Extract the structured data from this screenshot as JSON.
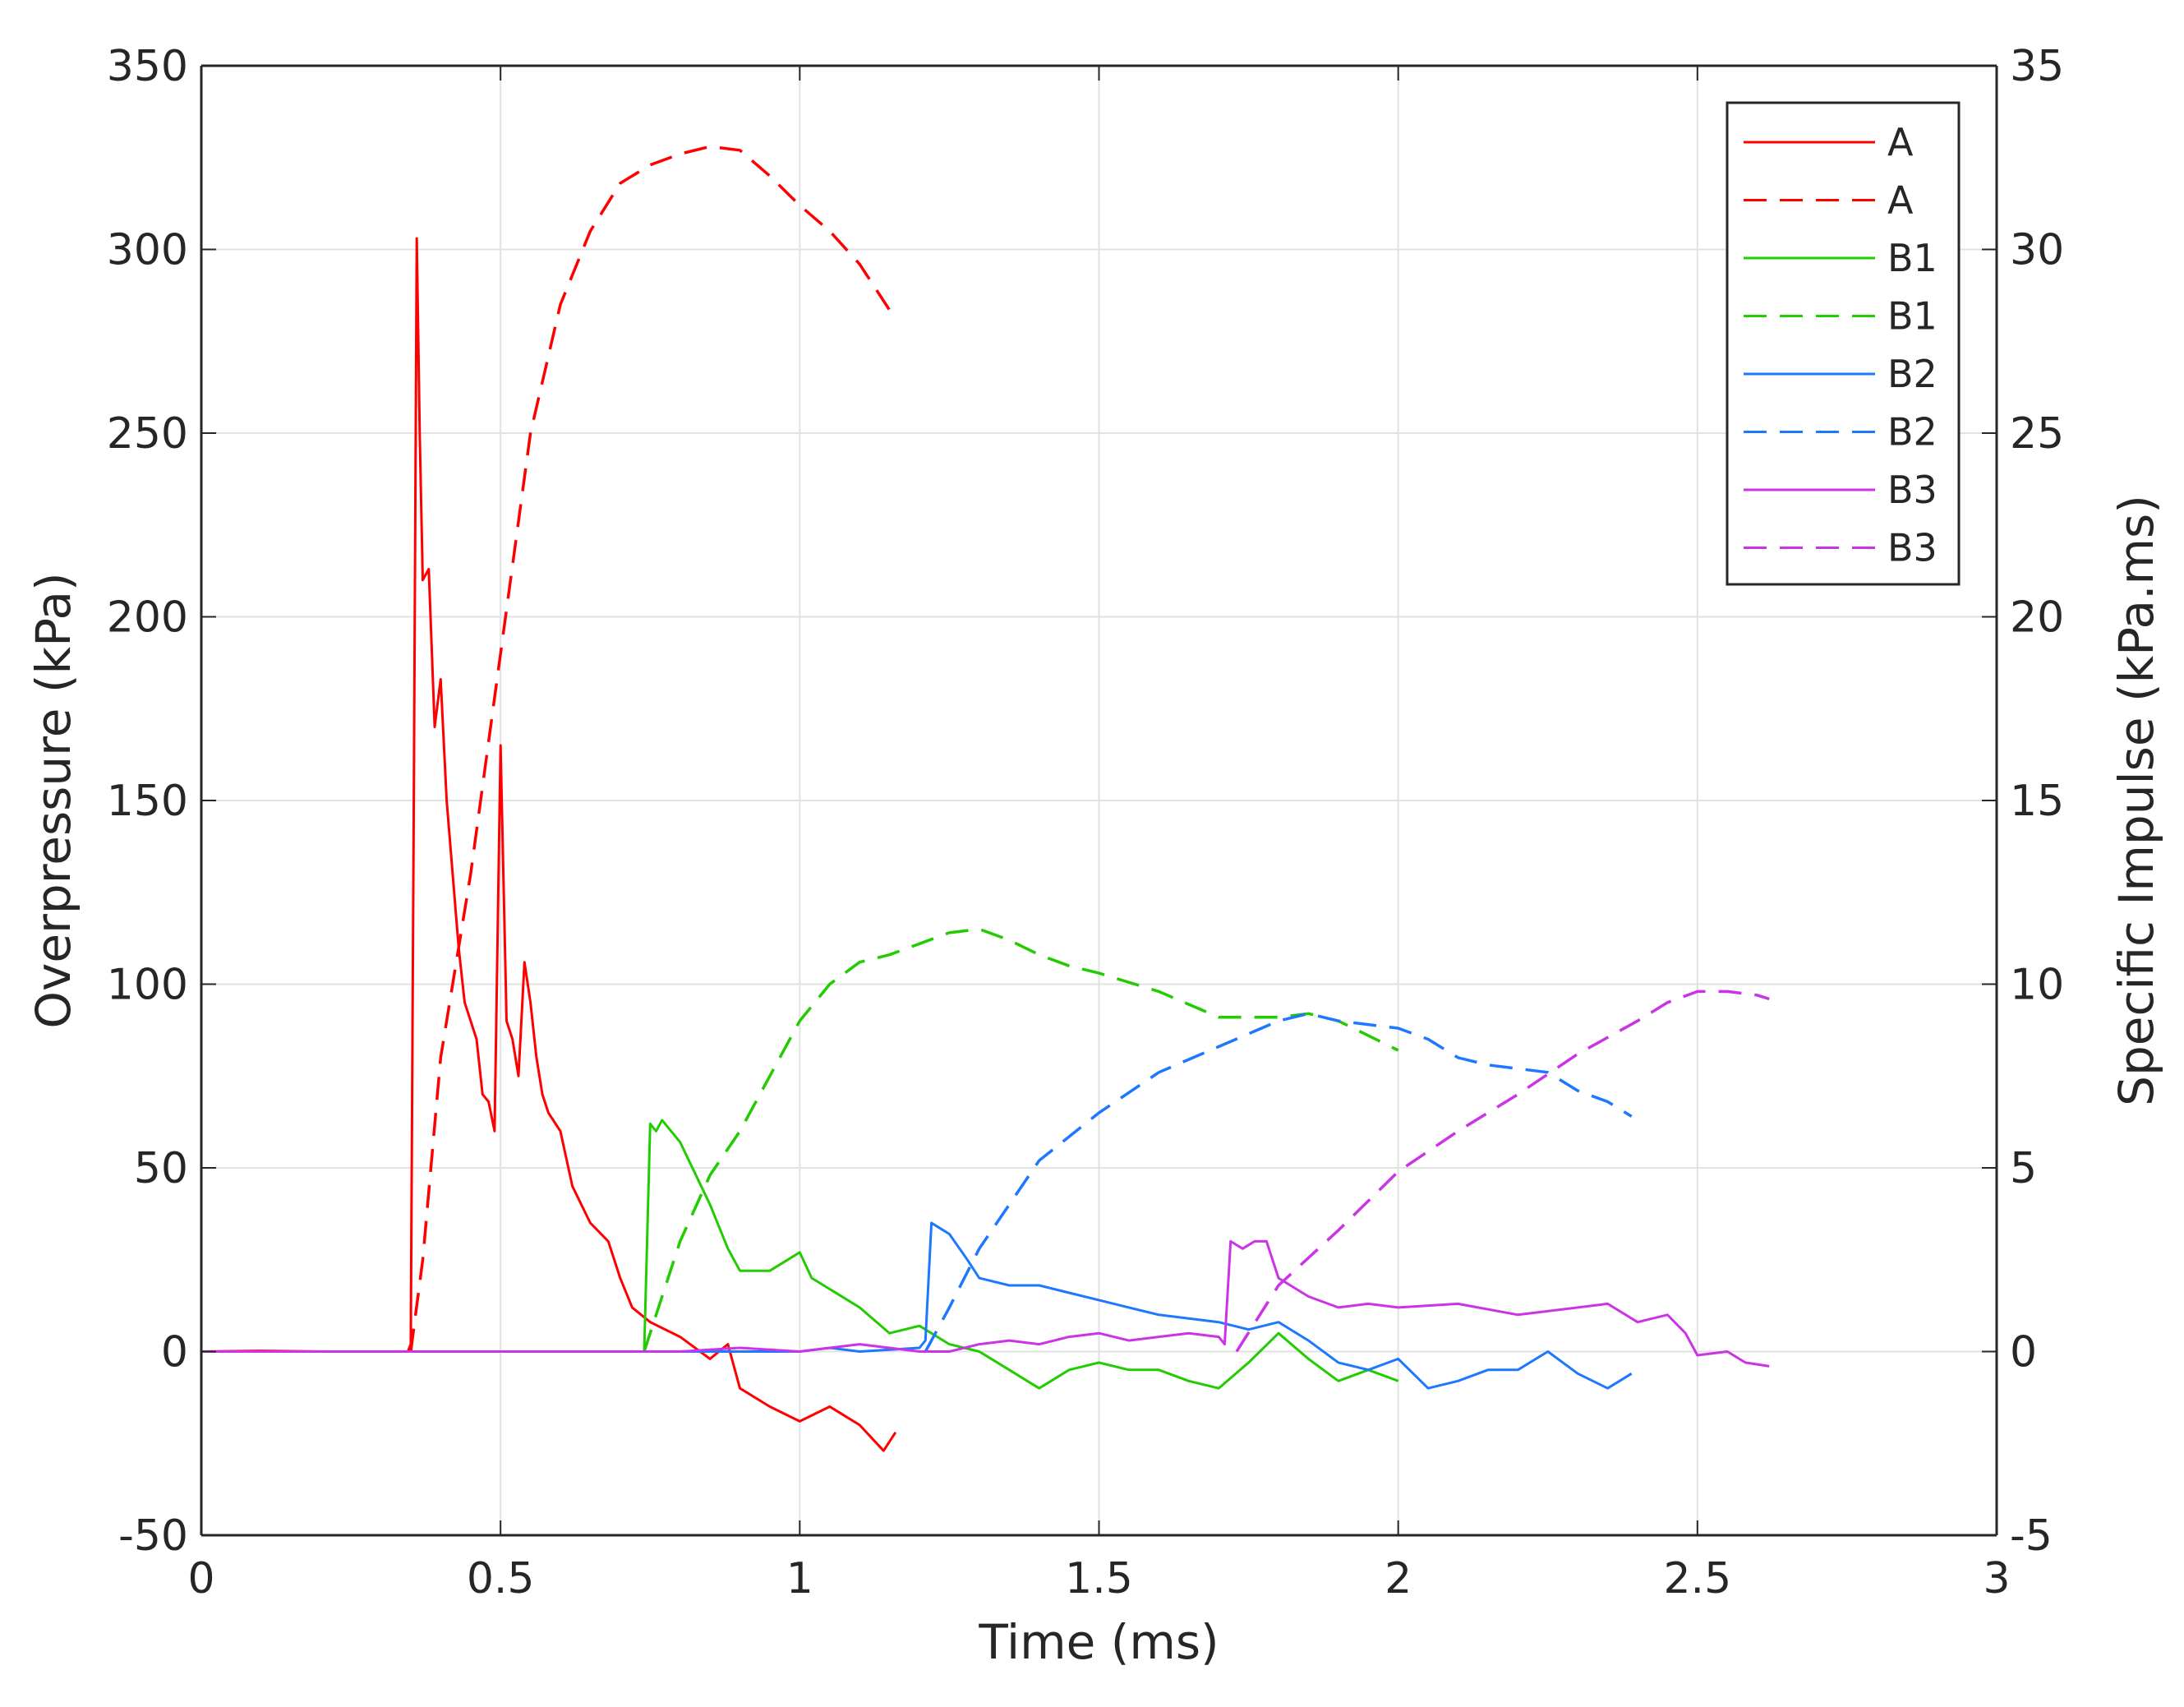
{
  "chart_data": {
    "type": "line",
    "title": "",
    "xlabel": "Time (ms)",
    "ylabel_left": "Overpressure (kPa)",
    "ylabel_right": "Specific Impulse (kPa.ms)",
    "xlim": [
      0,
      3
    ],
    "ylim_left": [
      -50,
      350
    ],
    "ylim_right": [
      -5,
      35
    ],
    "x_ticks": [
      "0",
      "0.5",
      "1",
      "1.5",
      "2",
      "2.5",
      "3"
    ],
    "y_ticks_left": [
      "-50",
      "0",
      "50",
      "100",
      "150",
      "200",
      "250",
      "300",
      "350"
    ],
    "y_ticks_right": [
      "-5",
      "0",
      "5",
      "10",
      "15",
      "20",
      "25",
      "30",
      "35"
    ],
    "grid": true,
    "legend_position": "top-right",
    "series": [
      {
        "name": "A",
        "axis": "left",
        "style": "solid",
        "color": "#ff0000",
        "points": [
          [
            0,
            0
          ],
          [
            0.1,
            0.2
          ],
          [
            0.2,
            0
          ],
          [
            0.3,
            0
          ],
          [
            0.345,
            0
          ],
          [
            0.35,
            2
          ],
          [
            0.355,
            150
          ],
          [
            0.36,
            303
          ],
          [
            0.365,
            250
          ],
          [
            0.37,
            210
          ],
          [
            0.38,
            213
          ],
          [
            0.39,
            170
          ],
          [
            0.4,
            183
          ],
          [
            0.41,
            150
          ],
          [
            0.42,
            130
          ],
          [
            0.43,
            110
          ],
          [
            0.44,
            95
          ],
          [
            0.45,
            90
          ],
          [
            0.46,
            85
          ],
          [
            0.47,
            70
          ],
          [
            0.48,
            68
          ],
          [
            0.49,
            60
          ],
          [
            0.5,
            165
          ],
          [
            0.51,
            90
          ],
          [
            0.52,
            85
          ],
          [
            0.53,
            75
          ],
          [
            0.54,
            106
          ],
          [
            0.55,
            95
          ],
          [
            0.56,
            80
          ],
          [
            0.57,
            70
          ],
          [
            0.58,
            65
          ],
          [
            0.6,
            60
          ],
          [
            0.62,
            45
          ],
          [
            0.65,
            35
          ],
          [
            0.68,
            30
          ],
          [
            0.7,
            20
          ],
          [
            0.72,
            12
          ],
          [
            0.75,
            8
          ],
          [
            0.8,
            4
          ],
          [
            0.85,
            -2
          ],
          [
            0.88,
            2
          ],
          [
            0.9,
            -10
          ],
          [
            0.95,
            -15
          ],
          [
            1.0,
            -19
          ],
          [
            1.05,
            -15
          ],
          [
            1.1,
            -20
          ],
          [
            1.14,
            -27
          ],
          [
            1.16,
            -22
          ]
        ]
      },
      {
        "name": "A",
        "axis": "right",
        "style": "dashed",
        "color": "#ff0000",
        "points": [
          [
            0.35,
            0
          ],
          [
            0.37,
            2.5
          ],
          [
            0.4,
            8
          ],
          [
            0.45,
            13
          ],
          [
            0.5,
            19
          ],
          [
            0.55,
            25
          ],
          [
            0.6,
            28.5
          ],
          [
            0.65,
            30.5
          ],
          [
            0.7,
            31.8
          ],
          [
            0.75,
            32.3
          ],
          [
            0.8,
            32.6
          ],
          [
            0.85,
            32.8
          ],
          [
            0.9,
            32.7
          ],
          [
            0.95,
            32
          ],
          [
            1.0,
            31.2
          ],
          [
            1.05,
            30.5
          ],
          [
            1.1,
            29.6
          ],
          [
            1.16,
            28.1
          ]
        ]
      },
      {
        "name": "B1",
        "axis": "left",
        "style": "solid",
        "color": "#22cc00",
        "points": [
          [
            0,
            0
          ],
          [
            0.5,
            0
          ],
          [
            0.7,
            0
          ],
          [
            0.74,
            0
          ],
          [
            0.75,
            62
          ],
          [
            0.76,
            60
          ],
          [
            0.77,
            63
          ],
          [
            0.8,
            57
          ],
          [
            0.85,
            40
          ],
          [
            0.88,
            28
          ],
          [
            0.9,
            22
          ],
          [
            0.95,
            22
          ],
          [
            1.0,
            27
          ],
          [
            1.02,
            20
          ],
          [
            1.05,
            17
          ],
          [
            1.1,
            12
          ],
          [
            1.15,
            5
          ],
          [
            1.2,
            7
          ],
          [
            1.25,
            2
          ],
          [
            1.3,
            0
          ],
          [
            1.35,
            -5
          ],
          [
            1.4,
            -10
          ],
          [
            1.45,
            -5
          ],
          [
            1.5,
            -3
          ],
          [
            1.55,
            -5
          ],
          [
            1.6,
            -5
          ],
          [
            1.65,
            -8
          ],
          [
            1.7,
            -10
          ],
          [
            1.75,
            -3
          ],
          [
            1.8,
            5
          ],
          [
            1.85,
            -2
          ],
          [
            1.9,
            -8
          ],
          [
            1.95,
            -5
          ],
          [
            2.0,
            -8
          ]
        ]
      },
      {
        "name": "B1",
        "axis": "right",
        "style": "dashed",
        "color": "#22cc00",
        "points": [
          [
            0.74,
            0
          ],
          [
            0.77,
            1.5
          ],
          [
            0.8,
            3
          ],
          [
            0.85,
            4.8
          ],
          [
            0.9,
            6
          ],
          [
            0.95,
            7.5
          ],
          [
            1.0,
            9
          ],
          [
            1.05,
            10
          ],
          [
            1.1,
            10.6
          ],
          [
            1.15,
            10.8
          ],
          [
            1.2,
            11.1
          ],
          [
            1.25,
            11.4
          ],
          [
            1.3,
            11.5
          ],
          [
            1.35,
            11.2
          ],
          [
            1.4,
            10.8
          ],
          [
            1.45,
            10.5
          ],
          [
            1.5,
            10.3
          ],
          [
            1.6,
            9.8
          ],
          [
            1.7,
            9.1
          ],
          [
            1.8,
            9.1
          ],
          [
            1.85,
            9.2
          ],
          [
            1.9,
            9.0
          ],
          [
            1.95,
            8.6
          ],
          [
            2.0,
            8.2
          ]
        ]
      },
      {
        "name": "B2",
        "axis": "left",
        "style": "solid",
        "color": "#1e78ff",
        "points": [
          [
            0,
            0
          ],
          [
            0.9,
            0
          ],
          [
            1.0,
            0
          ],
          [
            1.05,
            1
          ],
          [
            1.1,
            0
          ],
          [
            1.2,
            1
          ],
          [
            1.21,
            3
          ],
          [
            1.22,
            35
          ],
          [
            1.25,
            32
          ],
          [
            1.28,
            25
          ],
          [
            1.3,
            20
          ],
          [
            1.35,
            18
          ],
          [
            1.4,
            18
          ],
          [
            1.45,
            16
          ],
          [
            1.5,
            14
          ],
          [
            1.55,
            12
          ],
          [
            1.6,
            10
          ],
          [
            1.65,
            9
          ],
          [
            1.7,
            8
          ],
          [
            1.75,
            6
          ],
          [
            1.8,
            8
          ],
          [
            1.85,
            3
          ],
          [
            1.9,
            -3
          ],
          [
            1.95,
            -5
          ],
          [
            2.0,
            -2
          ],
          [
            2.05,
            -10
          ],
          [
            2.1,
            -8
          ],
          [
            2.15,
            -5
          ],
          [
            2.2,
            -5
          ],
          [
            2.25,
            0
          ],
          [
            2.3,
            -6
          ],
          [
            2.35,
            -10
          ],
          [
            2.39,
            -6
          ]
        ]
      },
      {
        "name": "B2",
        "axis": "right",
        "style": "dashed",
        "color": "#1e78ff",
        "points": [
          [
            1.21,
            0
          ],
          [
            1.25,
            1.2
          ],
          [
            1.3,
            2.8
          ],
          [
            1.35,
            4
          ],
          [
            1.4,
            5.2
          ],
          [
            1.5,
            6.5
          ],
          [
            1.6,
            7.6
          ],
          [
            1.7,
            8.3
          ],
          [
            1.8,
            9.0
          ],
          [
            1.85,
            9.2
          ],
          [
            1.9,
            9.0
          ],
          [
            2.0,
            8.8
          ],
          [
            2.05,
            8.5
          ],
          [
            2.1,
            8.0
          ],
          [
            2.15,
            7.8
          ],
          [
            2.2,
            7.7
          ],
          [
            2.25,
            7.6
          ],
          [
            2.3,
            7.1
          ],
          [
            2.35,
            6.8
          ],
          [
            2.39,
            6.4
          ]
        ]
      },
      {
        "name": "B3",
        "axis": "left",
        "style": "solid",
        "color": "#cc33e6",
        "points": [
          [
            0,
            0
          ],
          [
            0.8,
            0
          ],
          [
            0.9,
            1
          ],
          [
            1.0,
            0
          ],
          [
            1.1,
            2
          ],
          [
            1.2,
            0
          ],
          [
            1.25,
            0
          ],
          [
            1.3,
            2
          ],
          [
            1.35,
            3
          ],
          [
            1.4,
            2
          ],
          [
            1.45,
            4
          ],
          [
            1.5,
            5
          ],
          [
            1.55,
            3
          ],
          [
            1.6,
            4
          ],
          [
            1.65,
            5
          ],
          [
            1.7,
            4
          ],
          [
            1.71,
            2
          ],
          [
            1.72,
            30
          ],
          [
            1.74,
            28
          ],
          [
            1.76,
            30
          ],
          [
            1.78,
            30
          ],
          [
            1.8,
            20
          ],
          [
            1.85,
            15
          ],
          [
            1.9,
            12
          ],
          [
            1.95,
            13
          ],
          [
            2.0,
            12
          ],
          [
            2.1,
            13
          ],
          [
            2.2,
            10
          ],
          [
            2.3,
            12
          ],
          [
            2.35,
            13
          ],
          [
            2.4,
            8
          ],
          [
            2.45,
            10
          ],
          [
            2.48,
            5
          ],
          [
            2.5,
            -1
          ],
          [
            2.55,
            0
          ],
          [
            2.58,
            -3
          ],
          [
            2.62,
            -4
          ]
        ]
      },
      {
        "name": "B3",
        "axis": "right",
        "style": "dashed",
        "color": "#cc33e6",
        "points": [
          [
            1.73,
            0
          ],
          [
            1.8,
            1.8
          ],
          [
            1.9,
            3.3
          ],
          [
            2.0,
            4.9
          ],
          [
            2.1,
            6
          ],
          [
            2.2,
            7.0
          ],
          [
            2.3,
            8.1
          ],
          [
            2.4,
            9.0
          ],
          [
            2.45,
            9.5
          ],
          [
            2.5,
            9.8
          ],
          [
            2.55,
            9.8
          ],
          [
            2.6,
            9.7
          ],
          [
            2.62,
            9.6
          ]
        ]
      }
    ]
  }
}
